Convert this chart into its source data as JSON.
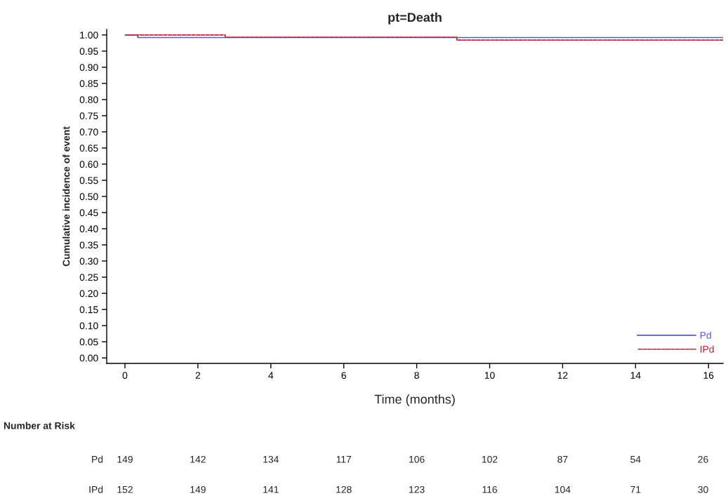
{
  "chart_data": {
    "type": "step",
    "title": "pt=Death",
    "xlabel": "Time (months)",
    "ylabel": "Cumulative incidence of event",
    "series": [
      {
        "name": "Pd",
        "color": "#5555dd",
        "line_style": "solid",
        "x": [
          0,
          0.35,
          16.4
        ],
        "values": [
          1.0,
          0.992,
          0.992
        ]
      },
      {
        "name": "IPd",
        "color": "#c0203a",
        "line_style": "dashed",
        "x": [
          0,
          2.75,
          9.1,
          16.4
        ],
        "values": [
          1.0,
          0.993,
          0.984,
          0.984
        ]
      }
    ],
    "xlim": [
      -0.5,
      16.4
    ],
    "xticks": [
      0,
      2,
      4,
      6,
      8,
      10,
      12,
      14,
      16
    ],
    "ylim": [
      -0.017,
      1.017
    ],
    "yticks": [
      {
        "value": 0,
        "label": "0.00"
      },
      {
        "value": 0.05,
        "label": "0.05"
      },
      {
        "value": 0.1,
        "label": "0.10"
      },
      {
        "value": 0.15,
        "label": "0.15"
      },
      {
        "value": 0.2,
        "label": "0.20"
      },
      {
        "value": 0.25,
        "label": "0.25"
      },
      {
        "value": 0.3,
        "label": "0.30"
      },
      {
        "value": 0.35,
        "label": "0.35"
      },
      {
        "value": 0.4,
        "label": "0.40"
      },
      {
        "value": 0.45,
        "label": "0.45"
      },
      {
        "value": 0.5,
        "label": "0.50"
      },
      {
        "value": 0.55,
        "label": "0.55"
      },
      {
        "value": 0.6,
        "label": "0.60"
      },
      {
        "value": 0.65,
        "label": "0.65"
      },
      {
        "value": 0.7,
        "label": "0.70"
      },
      {
        "value": 0.75,
        "label": "0.75"
      },
      {
        "value": 0.8,
        "label": "0.80"
      },
      {
        "value": 0.85,
        "label": "0.85"
      },
      {
        "value": 0.9,
        "label": "0.90"
      },
      {
        "value": 0.95,
        "label": "0.95"
      },
      {
        "value": 1.0,
        "label": "1.00"
      }
    ],
    "grid": false,
    "legend": "bottom right",
    "annotations": [
      "Number at Risk",
      "Pd",
      "149",
      "142",
      "134",
      "117",
      "106",
      "102",
      "87",
      "54",
      "26",
      "IPd",
      "152",
      "149",
      "141",
      "128",
      "123",
      "116",
      "104",
      "71",
      "30"
    ]
  }
}
